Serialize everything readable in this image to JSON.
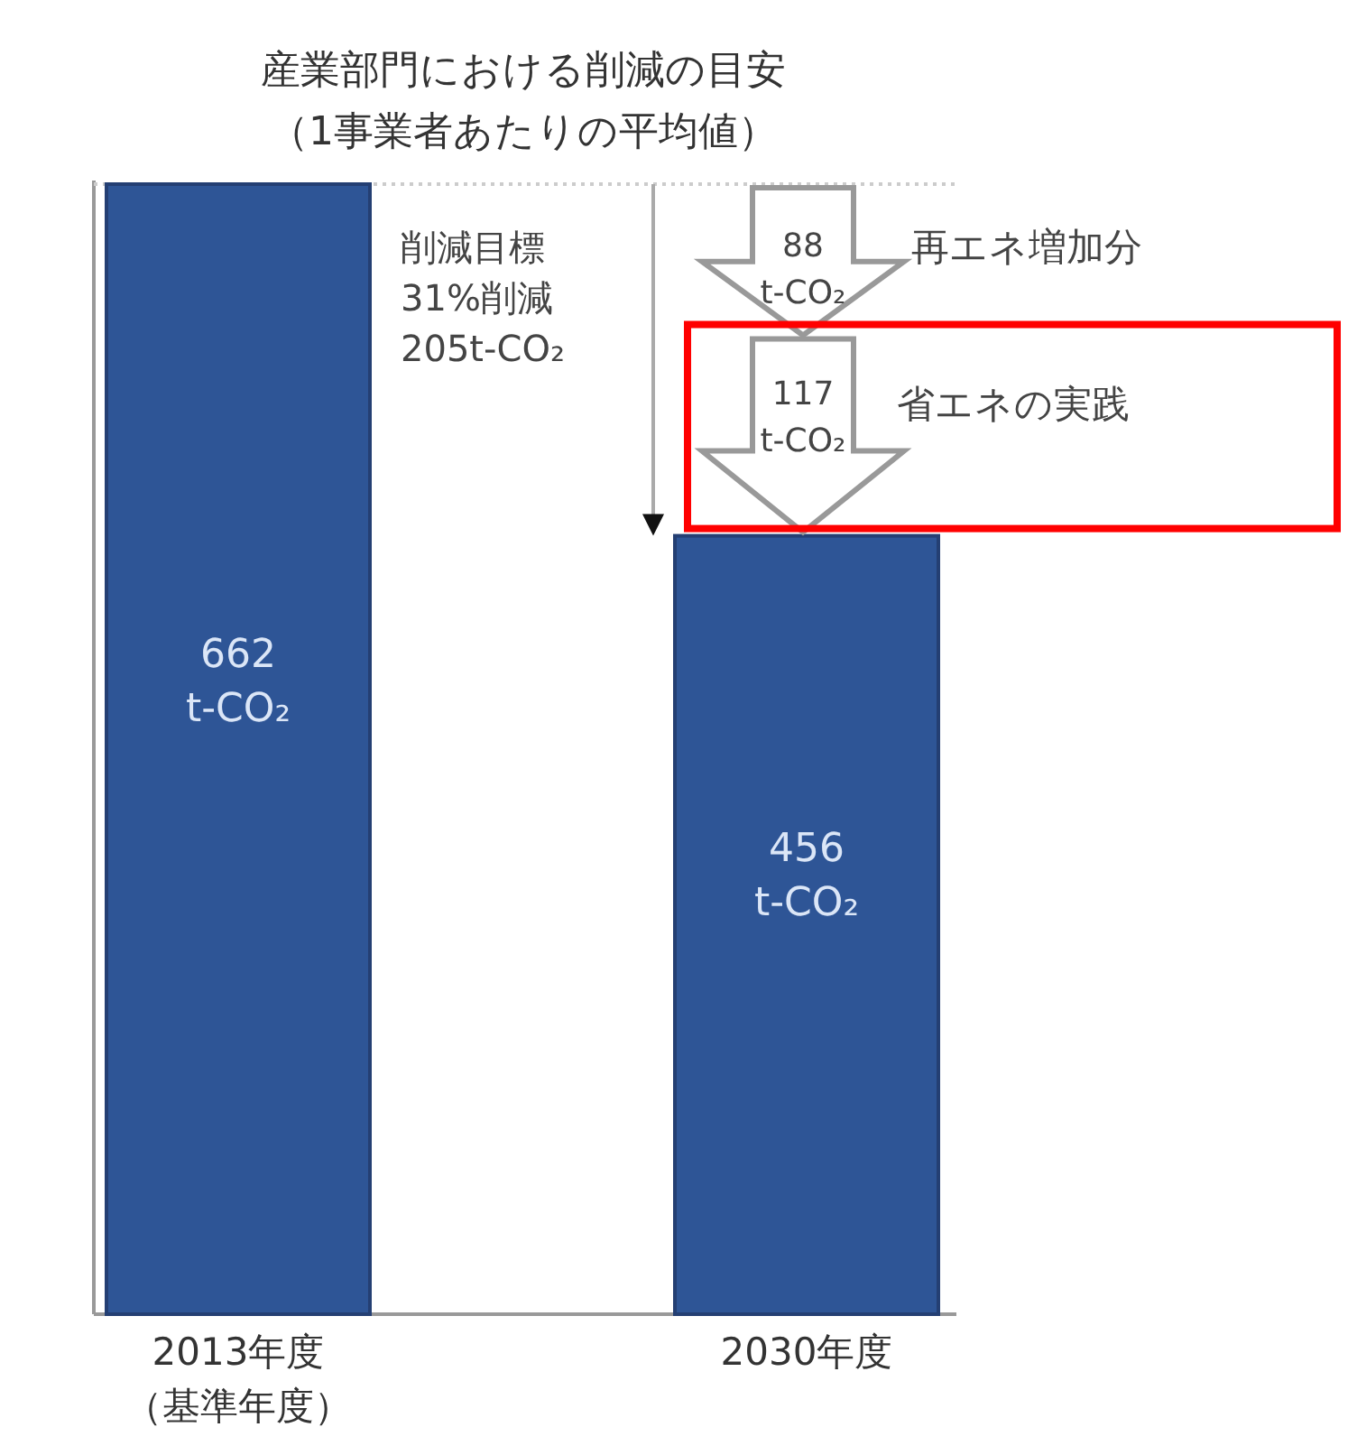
{
  "chart_data": {
    "type": "bar",
    "title": "産業部門における削減の目安",
    "subtitle": "（1事業者あたりの平均値）",
    "categories": [
      "2013年度（基準年度）",
      "2030年度"
    ],
    "values": [
      662,
      456
    ],
    "color": "#2e5596",
    "value_labels": [
      "662\nt-CO₂",
      "456\nt-CO₂"
    ],
    "ref_lines": [
      {
        "axis": "y",
        "value": 662,
        "color": "#cccccc",
        "line_style": "dotted"
      }
    ],
    "annotations": [
      "88\nt-CO₂",
      "再エネ増加分",
      "117\nt-CO₂",
      "省エネの実践",
      "削減目標\n31%削減\n205t-CO₂"
    ]
  }
}
